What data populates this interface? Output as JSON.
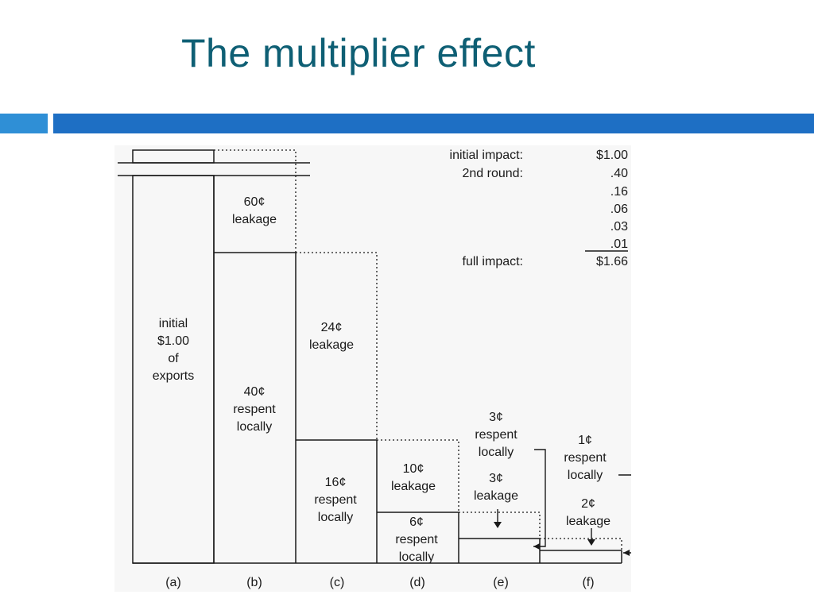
{
  "slide": {
    "title": "The multiplier effect",
    "accent_colors": {
      "title": "#0e5f74",
      "bar": "#1e6fc4",
      "bar_light": "#2f8fd6"
    }
  },
  "diagram": {
    "columns": [
      {
        "label": "(a)",
        "text": [
          "initial",
          "$1.00",
          "of",
          "exports"
        ]
      },
      {
        "label": "(b)",
        "leakage": [
          "60¢",
          "leakage"
        ],
        "respent": [
          "40¢",
          "respent",
          "locally"
        ]
      },
      {
        "label": "(c)",
        "leakage": [
          "24¢",
          "leakage"
        ],
        "respent": [
          "16¢",
          "respent",
          "locally"
        ]
      },
      {
        "label": "(d)",
        "leakage": [
          "10¢",
          "leakage"
        ],
        "respent": [
          "6¢",
          "respent",
          "locally"
        ]
      },
      {
        "label": "(e)",
        "leakage": [
          "3¢",
          "leakage"
        ],
        "respent": [
          "3¢",
          "respent",
          "locally"
        ]
      },
      {
        "label": "(f)",
        "leakage": [
          "2¢",
          "leakage"
        ],
        "respent": [
          "1¢",
          "respent",
          "locally"
        ]
      }
    ],
    "summary": {
      "rows": [
        {
          "label": "initial impact:",
          "value": "$1.00"
        },
        {
          "label": "2nd round:",
          "value": ".40"
        },
        {
          "label": "",
          "value": ".16"
        },
        {
          "label": "",
          "value": ".06"
        },
        {
          "label": "",
          "value": ".03"
        },
        {
          "label": "",
          "value": ".01"
        }
      ],
      "total": {
        "label": "full impact:",
        "value": "$1.66"
      }
    }
  }
}
